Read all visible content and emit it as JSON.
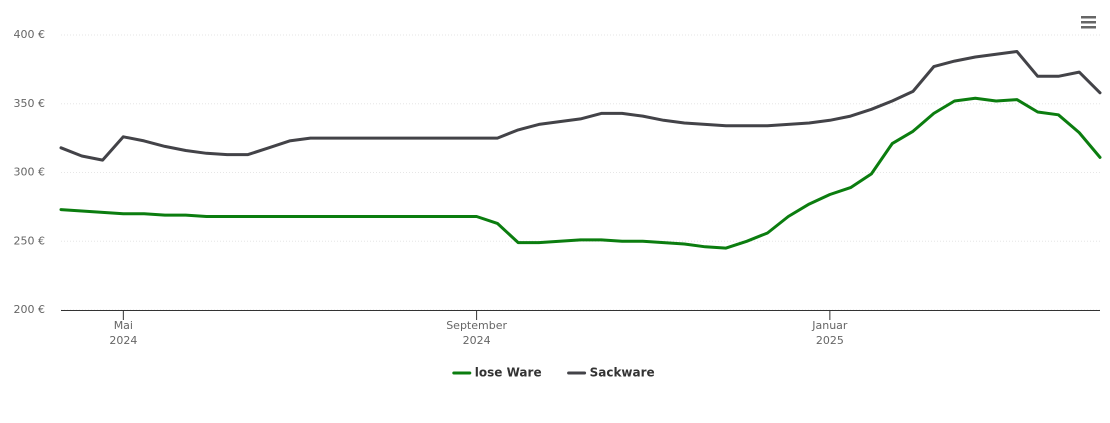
{
  "chart_data": {
    "type": "line",
    "categories": [
      null,
      null,
      null,
      "Mai 2024",
      null,
      null,
      null,
      null,
      null,
      null,
      null,
      null,
      null,
      null,
      null,
      null,
      null,
      null,
      null,
      null,
      "September 2024",
      null,
      null,
      null,
      null,
      null,
      null,
      null,
      null,
      null,
      null,
      null,
      null,
      null,
      null,
      null,
      null,
      "Januar 2025",
      null,
      null,
      null,
      null,
      null,
      null,
      null,
      null,
      null,
      null,
      null,
      null,
      null
    ],
    "series": [
      {
        "name": "lose Ware",
        "color": "#0b7d0f",
        "values": [
          273,
          272,
          271,
          270,
          270,
          269,
          269,
          268,
          268,
          268,
          268,
          268,
          268,
          268,
          268,
          268,
          268,
          268,
          268,
          268,
          268,
          263,
          249,
          249,
          250,
          251,
          251,
          250,
          250,
          249,
          248,
          246,
          245,
          250,
          256,
          268,
          277,
          284,
          289,
          299,
          321,
          330,
          343,
          352,
          354,
          352,
          353,
          344,
          342,
          329,
          311
        ]
      },
      {
        "name": "Sackware",
        "color": "#434348",
        "values": [
          318,
          312,
          309,
          326,
          323,
          319,
          316,
          314,
          313,
          313,
          318,
          323,
          325,
          325,
          325,
          325,
          325,
          325,
          325,
          325,
          325,
          325,
          331,
          335,
          337,
          339,
          343,
          343,
          341,
          338,
          336,
          335,
          334,
          334,
          334,
          335,
          336,
          338,
          341,
          346,
          352,
          359,
          377,
          381,
          384,
          386,
          388,
          370,
          370,
          373,
          358
        ]
      }
    ],
    "ylim": [
      200,
      400
    ],
    "yticks": [
      {
        "value": 200,
        "label": "200 €"
      },
      {
        "value": 250,
        "label": "250 €"
      },
      {
        "value": 300,
        "label": "300 €"
      },
      {
        "value": 350,
        "label": "350 €"
      },
      {
        "value": 400,
        "label": "400 €"
      }
    ],
    "grid": true,
    "legend": "bottom"
  }
}
